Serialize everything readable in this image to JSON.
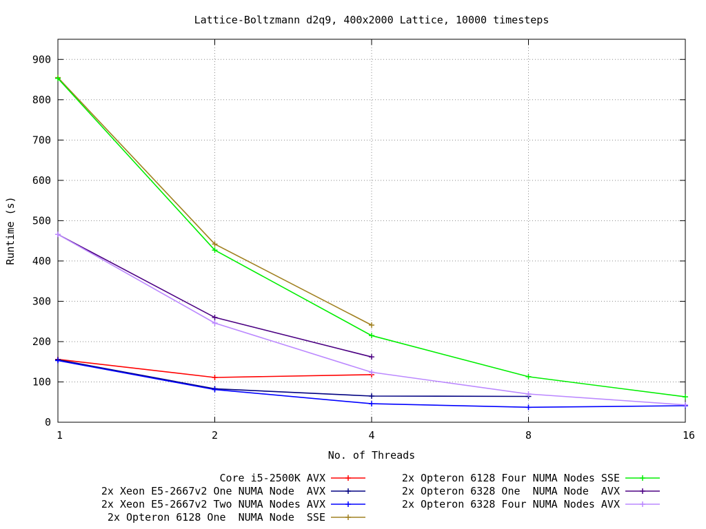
{
  "chart_data": {
    "type": "line",
    "title": "Lattice-Boltzmann d2q9, 400x2000 Lattice, 10000 timesteps",
    "xlabel": "No. of Threads",
    "ylabel": "Runtime (s)",
    "x_scale": "log2",
    "x_ticks": [
      "1",
      "2",
      "4",
      "8",
      "16"
    ],
    "y_ticks": [
      "0",
      "100",
      "200",
      "300",
      "400",
      "500",
      "600",
      "700",
      "800",
      "900"
    ],
    "xlim": [
      1,
      16
    ],
    "ylim": [
      0,
      950
    ],
    "grid": true,
    "legend_position": "bottom",
    "series": [
      {
        "name": "Core i5-2500K AVX",
        "color": "#ff0000",
        "x": [
          1,
          2,
          4
        ],
        "y": [
          156,
          111,
          118
        ]
      },
      {
        "name": "2x Xeon E5-2667v2 One NUMA Node  AVX",
        "color": "#000080",
        "x": [
          1,
          2,
          4,
          8
        ],
        "y": [
          155,
          83,
          65,
          64
        ]
      },
      {
        "name": "2x Xeon E5-2667v2 Two NUMA Nodes AVX",
        "color": "#0000ff",
        "x": [
          1,
          2,
          4,
          8,
          16
        ],
        "y": [
          153,
          81,
          46,
          37,
          41
        ]
      },
      {
        "name": "2x Opteron 6128 One  NUMA Node  SSE",
        "color": "#a08020",
        "x": [
          1,
          2,
          4
        ],
        "y": [
          855,
          442,
          241
        ]
      },
      {
        "name": "2x Opteron 6128 Four NUMA Nodes SSE",
        "color": "#00ee00",
        "x": [
          1,
          2,
          4,
          8,
          16
        ],
        "y": [
          853,
          427,
          215,
          113,
          63
        ]
      },
      {
        "name": "2x Opteron 6328 One  NUMA Node  AVX",
        "color": "#4b0082",
        "x": [
          1,
          2,
          4
        ],
        "y": [
          466,
          260,
          162
        ]
      },
      {
        "name": "2x Opteron 6328 Four NUMA Nodes AVX",
        "color": "#bb88ff",
        "x": [
          1,
          2,
          4,
          8,
          16
        ],
        "y": [
          466,
          246,
          124,
          70,
          43
        ]
      }
    ]
  }
}
